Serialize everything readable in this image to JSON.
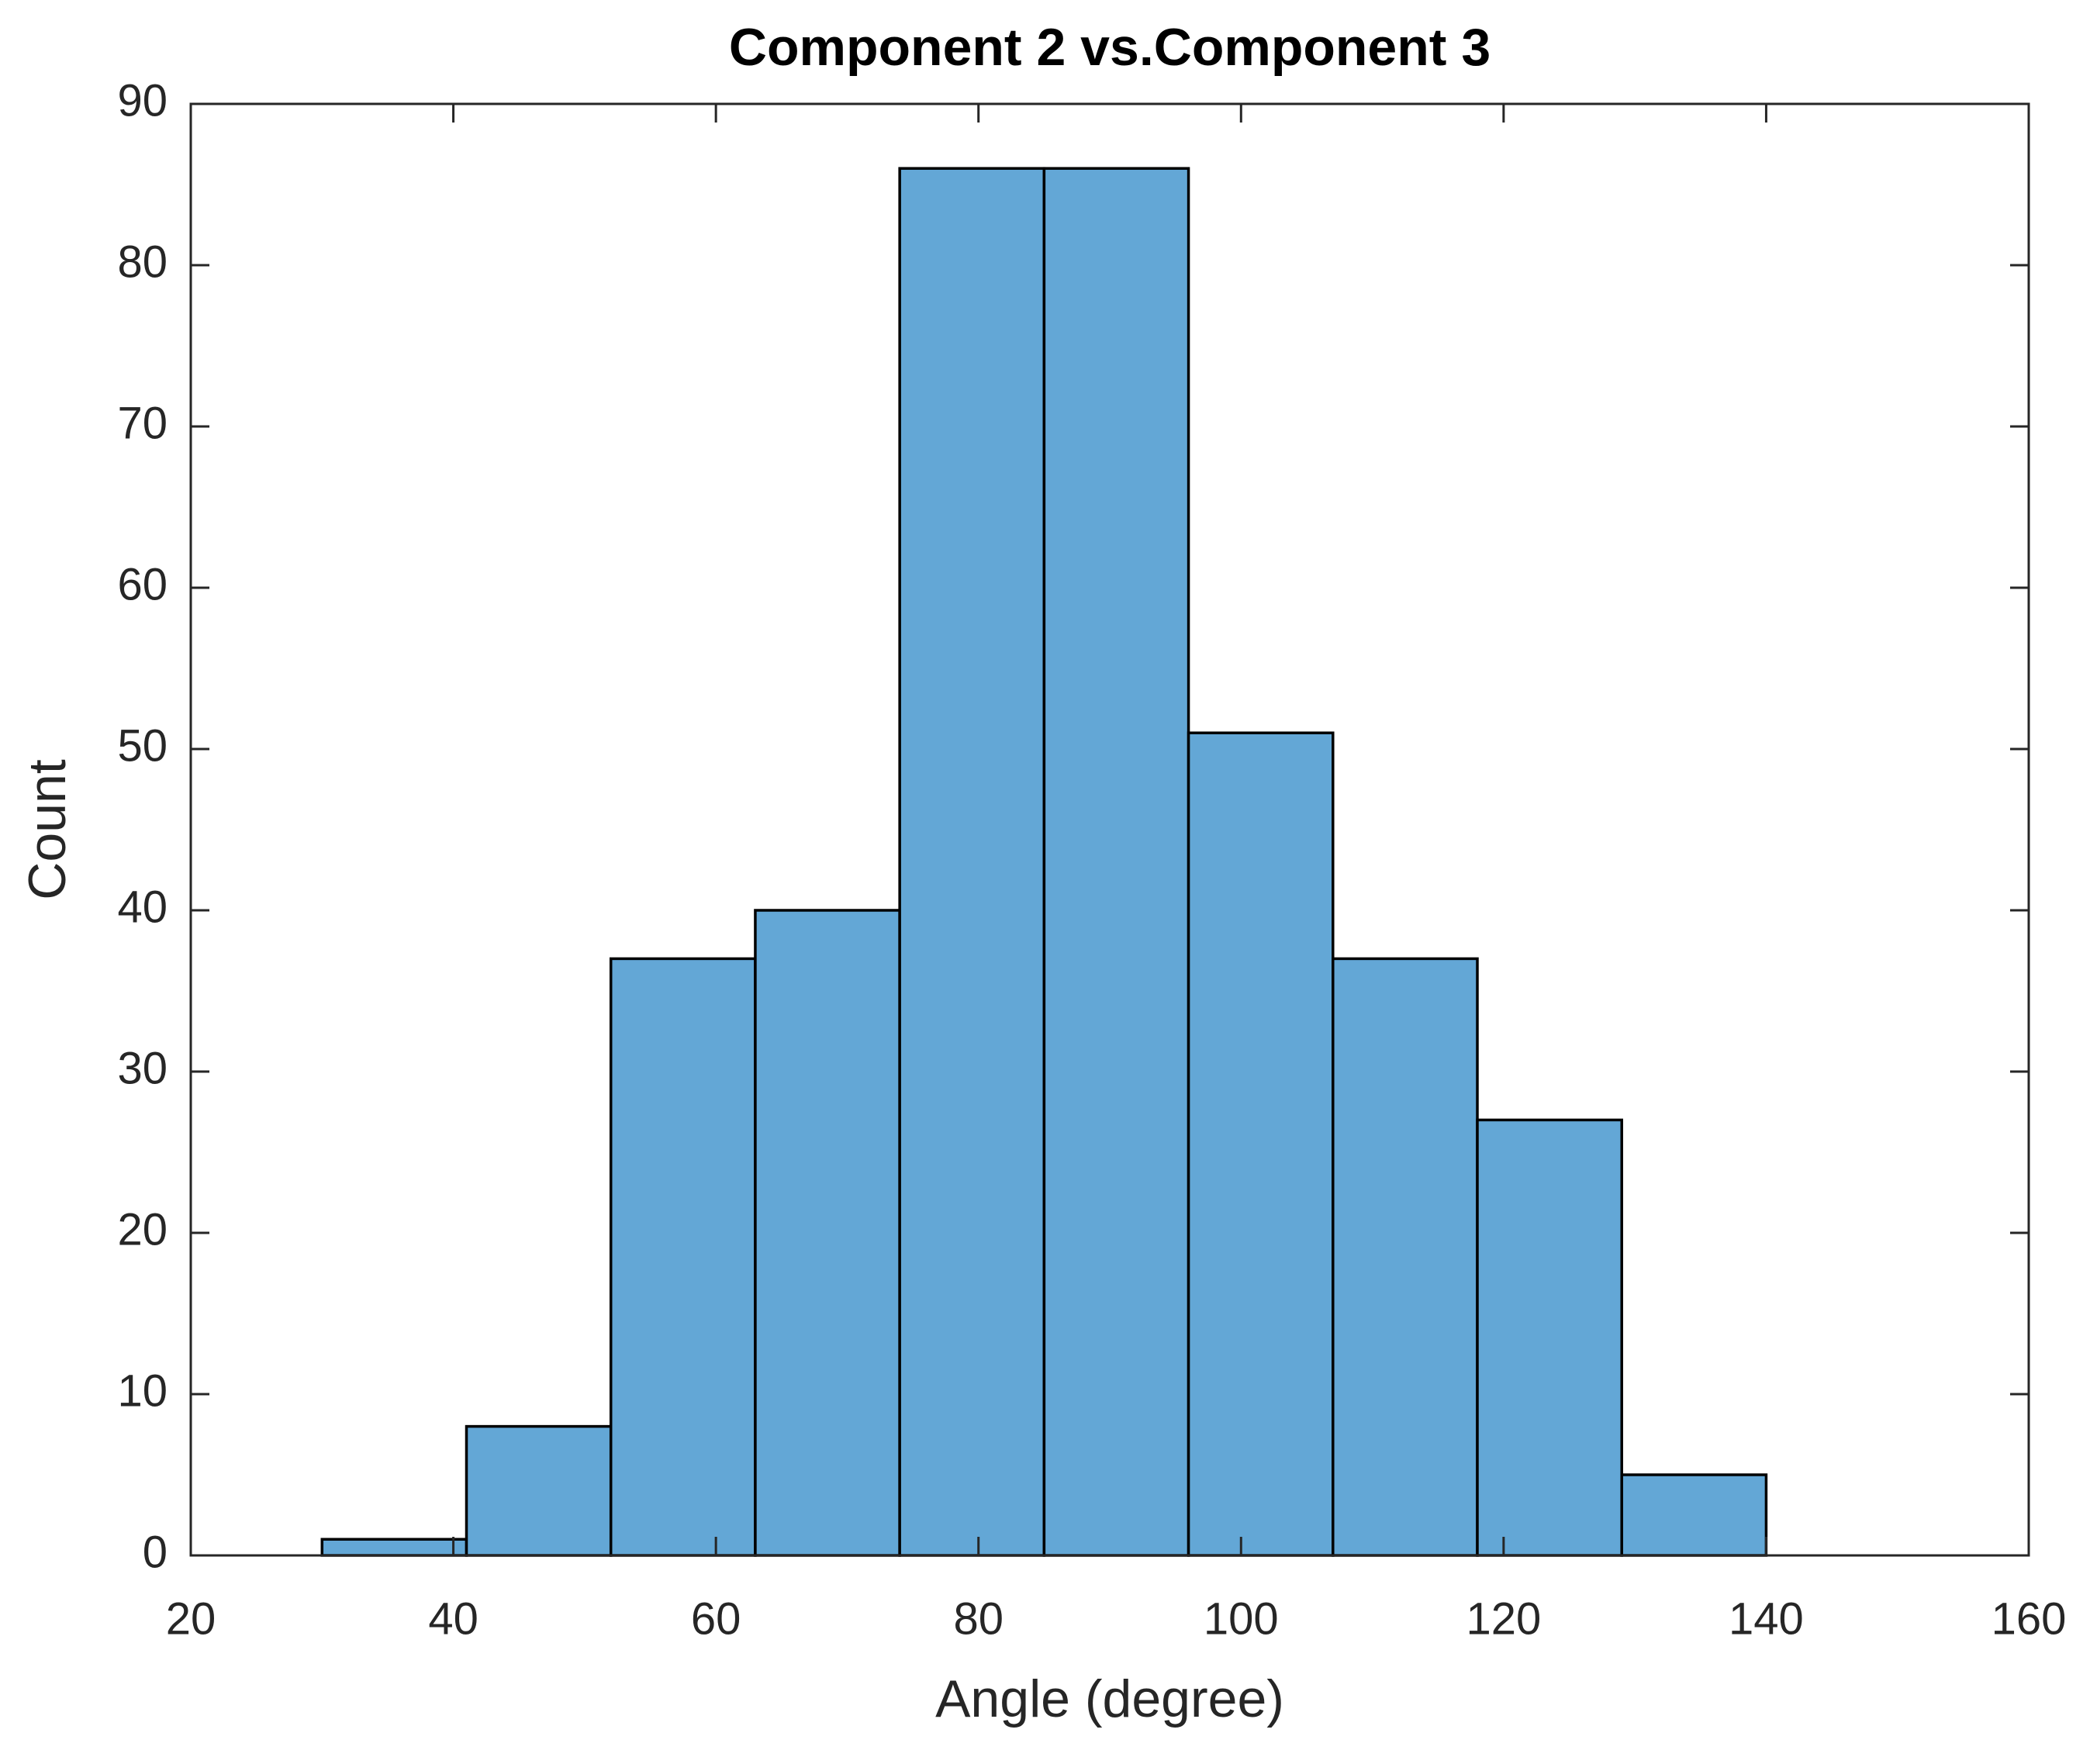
{
  "chart_data": {
    "type": "histogram",
    "title": "Component 2 vs.Component 3",
    "x_label": "Angle (degree)",
    "y_label": "Count",
    "bins": [
      30,
      41,
      52,
      63,
      74,
      85,
      96,
      107,
      118,
      129,
      140
    ],
    "values": [
      1,
      8,
      37,
      40,
      86,
      86,
      51,
      37,
      27,
      5
    ],
    "color": "#63a7d6",
    "xlim": [
      20,
      160
    ],
    "xticks": [
      20,
      40,
      60,
      80,
      100,
      120,
      140,
      160
    ],
    "ylim": [
      0,
      90
    ],
    "yticks": [
      0,
      10,
      20,
      30,
      40,
      50,
      60,
      70,
      80,
      90
    ],
    "grid": false
  }
}
